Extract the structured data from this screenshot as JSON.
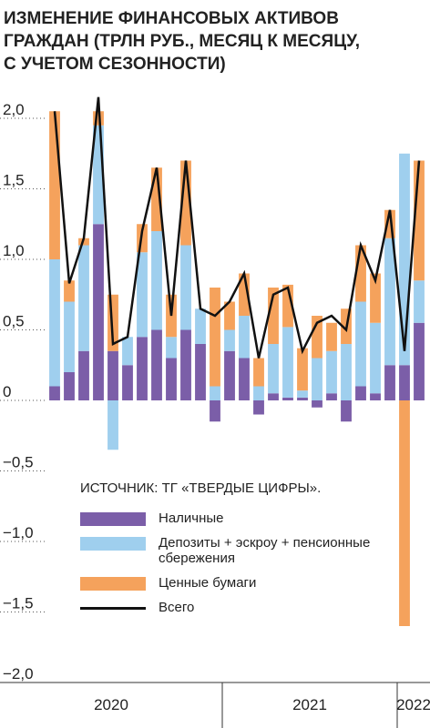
{
  "chart_data": {
    "type": "bar",
    "title": [
      "ИЗМЕНЕНИЕ ФИНАНСОВЫХ АКТИВОВ",
      "ГРАЖДАН (ТРЛН РУБ., МЕСЯЦ К МЕСЯЦУ,",
      "С УЧЕТОМ СЕЗОННОСТИ)"
    ],
    "annotation": "ИСТОЧНИК: ТГ «ТВЕРДЫЕ ЦИФРЫ».",
    "stacked": true,
    "categories": [
      null,
      null,
      null,
      null,
      null,
      null,
      null,
      null,
      null,
      null,
      null,
      null,
      null,
      null,
      null,
      null,
      null,
      null,
      null,
      null,
      null,
      null,
      null,
      null,
      null,
      null
    ],
    "x_groups": [
      {
        "label": "2020",
        "count": 12
      },
      {
        "label": "2021",
        "count": 12
      },
      {
        "label": "2022",
        "count": 2
      }
    ],
    "series": [
      {
        "name": "Наличные",
        "color": "#7b5ea8",
        "type": "bar",
        "values": [
          0.1,
          0.2,
          0.35,
          1.25,
          0.35,
          0.25,
          0.45,
          0.5,
          0.3,
          0.5,
          0.4,
          -0.15,
          0.35,
          0.3,
          -0.1,
          0.05,
          0.02,
          0.02,
          -0.05,
          0.05,
          -0.15,
          0.1,
          0.05,
          0.25,
          0.25,
          0.55
        ]
      },
      {
        "name": "Депозиты + эскроу + пенсионные сбережения",
        "color": "#9fcfee",
        "type": "bar",
        "values": [
          0.9,
          0.5,
          0.75,
          0.7,
          -0.35,
          0.2,
          0.6,
          0.7,
          0.15,
          0.6,
          0.25,
          0.1,
          0.15,
          0.3,
          0.1,
          0.35,
          0.5,
          0.05,
          0.3,
          0.3,
          0.4,
          0.6,
          0.5,
          0.9,
          1.5,
          0.3
        ]
      },
      {
        "name": "Ценные бумаги",
        "color": "#f5a25c",
        "type": "bar",
        "values": [
          1.05,
          0.15,
          0.05,
          0.1,
          0.4,
          0.0,
          0.2,
          0.45,
          0.3,
          0.6,
          0.0,
          0.7,
          0.2,
          0.3,
          0.2,
          0.4,
          0.3,
          0.3,
          0.3,
          0.2,
          0.25,
          0.4,
          0.35,
          0.2,
          -1.6,
          0.85
        ]
      },
      {
        "name": "Всего",
        "color": "#111111",
        "type": "line",
        "values": [
          2.05,
          0.83,
          1.15,
          2.15,
          0.4,
          0.45,
          1.2,
          1.65,
          0.6,
          1.7,
          0.65,
          0.6,
          0.7,
          0.9,
          0.3,
          0.75,
          0.8,
          0.35,
          0.55,
          0.6,
          0.5,
          1.1,
          0.85,
          1.35,
          0.35,
          1.7
        ]
      }
    ],
    "ylim": [
      -2.0,
      2.0
    ],
    "yticks": [
      {
        "value": 2.0,
        "label": "2,0"
      },
      {
        "value": 1.5,
        "label": "1,5"
      },
      {
        "value": 1.0,
        "label": "1,0"
      },
      {
        "value": 0.5,
        "label": "0,5"
      },
      0,
      {
        "value": -0.5,
        "label": "−0,5"
      },
      {
        "value": -1.0,
        "label": "−1,0"
      },
      {
        "value": -1.5,
        "label": "−1,5"
      },
      {
        "value": -2.0,
        "label": "−2,0"
      }
    ],
    "grid": true
  }
}
